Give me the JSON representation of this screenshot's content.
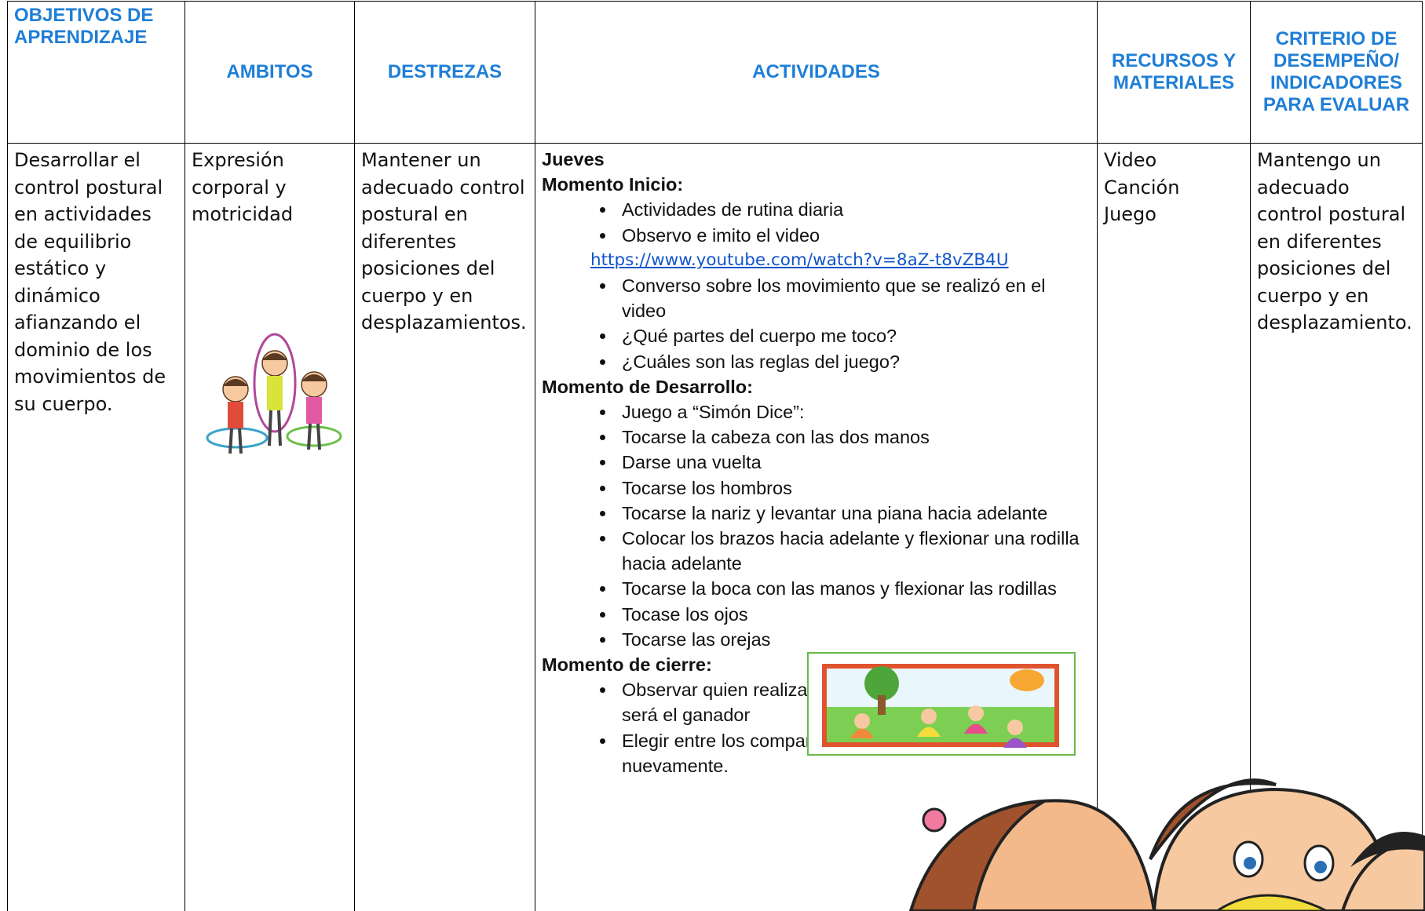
{
  "table": {
    "headers": [
      "OBJETIVOS DE APRENDIZAJE",
      "AMBITOS",
      "DESTREZAS",
      "ACTIVIDADES",
      "RECURSOS Y MATERIALES",
      "CRITERIO DE DESEMPEÑO/ INDICADORES PARA EVALUAR"
    ],
    "row": {
      "objetivo": "Desarrollar el control postural en actividades de equilibrio estático y dinámico afianzando el dominio de los movimientos de su cuerpo.",
      "ambito": "Expresión corporal y motricidad",
      "destreza": "Mantener un adecuado control postural en diferentes posiciones del cuerpo y en desplazamientos.",
      "actividades": {
        "day": "Jueves",
        "sections": [
          {
            "title": "Momento Inicio:",
            "items": [
              "Actividades de rutina diaria",
              "Observo e imito el video",
              {
                "link": "https://www.youtube.com/watch?v=8aZ-t8vZB4U"
              },
              "Converso sobre los movimiento que se realizó en el video",
              "¿Qué partes del cuerpo me toco?",
              "¿Cuáles son las reglas del juego?"
            ]
          },
          {
            "title": "Momento de Desarrollo:",
            "items": [
              "Juego a “Simón Dice”:",
              "Tocarse la cabeza con las dos manos",
              "Darse una vuelta",
              "Tocarse los hombros",
              "Tocarse la nariz y levantar una piana hacia adelante",
              "Colocar los brazos hacia adelante y flexionar una rodilla hacia adelante",
              "Tocarse la boca con las manos y flexionar las rodillas",
              "Tocase los ojos",
              "Tocarse las orejas"
            ]
          },
          {
            "title": "Momento de cierre:",
            "items": [
              "Observar quien realiza los movimientos más rápido y será el ganador",
              "Elegir entre los compañeros un nuevo líder y jugar nuevamente."
            ]
          }
        ]
      },
      "recursos": [
        "Video",
        "Canción",
        "Juego"
      ],
      "criterio": "Mantengo un adecuado control postural en diferentes posiciones del cuerpo y en desplazamiento."
    }
  }
}
